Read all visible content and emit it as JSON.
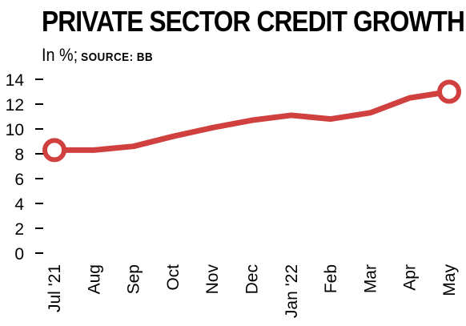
{
  "chart_data": {
    "type": "line",
    "title": "PRIVATE SECTOR CREDIT GROWTH",
    "unit_label": "In %;",
    "source_label": "SOURCE: BB",
    "categories": [
      "Jul '21",
      "Aug",
      "Sep",
      "Oct",
      "Nov",
      "Dec",
      "Jan '22",
      "Feb",
      "Mar",
      "Apr",
      "May"
    ],
    "series": [
      {
        "values": [
          8.3,
          8.3,
          8.6,
          9.4,
          10.1,
          10.7,
          11.1,
          10.8,
          11.3,
          12.5,
          13.0
        ]
      }
    ],
    "ylim": [
      0,
      14
    ],
    "yticks": [
      0,
      2,
      4,
      6,
      8,
      10,
      12,
      14
    ],
    "grid": false,
    "line_color": "#d0403f",
    "marker_fill": "#ffffff",
    "endpoint_markers": true
  }
}
